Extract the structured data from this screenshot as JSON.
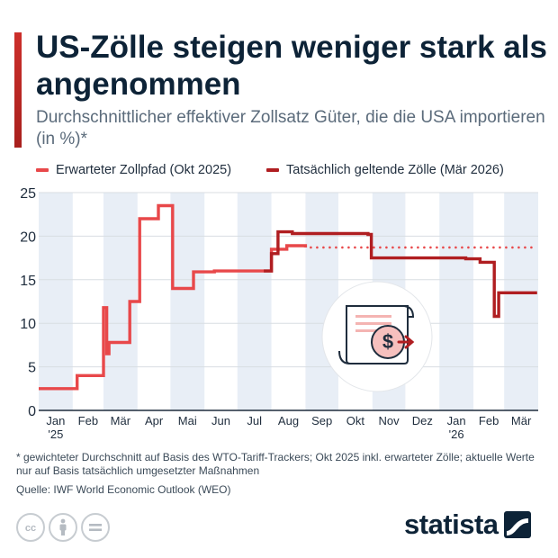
{
  "header": {
    "title": "US-Zölle steigen weniger stark als angenommen",
    "subtitle": "Durchschnittlicher effektiver Zollsatz Güter, die die USA importieren (in %)*"
  },
  "legend": {
    "expected_label": "Erwarteter Zollpfad (Okt 2025)",
    "actual_label": "Tatsächlich geltende Zölle (Mär 2026)"
  },
  "colors": {
    "expected": "#e8484a",
    "actual": "#b01e21",
    "grid": "#d8dde2",
    "band": "#e8eef6",
    "text": "#1f2d3d",
    "brand": "#0d2337"
  },
  "chart_data": {
    "type": "line",
    "ylim": [
      0,
      25
    ],
    "y_ticks": [
      0,
      5,
      10,
      15,
      20,
      25
    ],
    "grid": true,
    "legend_position": "top",
    "x_axis": {
      "start": "2025-01",
      "end": "2026-03",
      "tick_labels": [
        "Jan",
        "Feb",
        "Mär",
        "Apr",
        "Mai",
        "Jun",
        "Jul",
        "Aug",
        "Sep",
        "Okt",
        "Nov",
        "Dez",
        "Jan",
        "Feb",
        "Mär"
      ],
      "year_labels": [
        {
          "month": "Jan",
          "label": "'25"
        },
        {
          "month": "Jan",
          "label": "'26"
        }
      ]
    },
    "series": [
      {
        "name": "Erwarteter Zollpfad (Okt 2025)",
        "style": "step",
        "points": [
          [
            "2025-01-01",
            2.5
          ],
          [
            "2025-02-05",
            4.0
          ],
          [
            "2025-03-01",
            11.8
          ],
          [
            "2025-03-04",
            6.5
          ],
          [
            "2025-03-06",
            7.8
          ],
          [
            "2025-03-25",
            12.5
          ],
          [
            "2025-03-29",
            12.5
          ],
          [
            "2025-04-03",
            22.0
          ],
          [
            "2025-04-20",
            23.5
          ],
          [
            "2025-05-03",
            14.0
          ],
          [
            "2025-05-22",
            15.9
          ],
          [
            "2025-06-10",
            16.0
          ],
          [
            "2025-07-10",
            16.0
          ],
          [
            "2025-08-01",
            18.5
          ],
          [
            "2025-08-15",
            18.9
          ],
          [
            "2025-09-01",
            18.7
          ]
        ]
      },
      {
        "name": "Erwarteter Zollpfad (Okt 2025)",
        "style": "dotted",
        "points": [
          [
            "2025-09-01",
            18.7
          ],
          [
            "2026-03-31",
            18.7
          ]
        ]
      },
      {
        "name": "Tatsächlich geltende Zölle (Mär 2026)",
        "style": "step",
        "points": [
          [
            "2025-07-25",
            16.0
          ],
          [
            "2025-08-01",
            18.0
          ],
          [
            "2025-08-07",
            20.5
          ],
          [
            "2025-08-20",
            20.3
          ],
          [
            "2025-10-03",
            20.3
          ],
          [
            "2025-10-28",
            20.2
          ],
          [
            "2025-10-31",
            17.5
          ],
          [
            "2026-01-25",
            17.4
          ],
          [
            "2026-02-07",
            17.0
          ],
          [
            "2026-02-20",
            10.8
          ],
          [
            "2026-02-24",
            13.5
          ],
          [
            "2026-03-31",
            13.5
          ]
        ]
      }
    ]
  },
  "footnote": "* gewichteter Durchschnitt auf Basis des WTO-Tariff-Trackers; Okt 2025 inkl. erwarteter Zölle; aktuelle Werte nur auf Basis tatsächlich umgesetzter Maßnahmen",
  "source": "Quelle: IWF World Economic Outlook (WEO)",
  "license_icons": [
    "cc-icon",
    "by-icon",
    "nd-icon"
  ],
  "brand": "statista"
}
